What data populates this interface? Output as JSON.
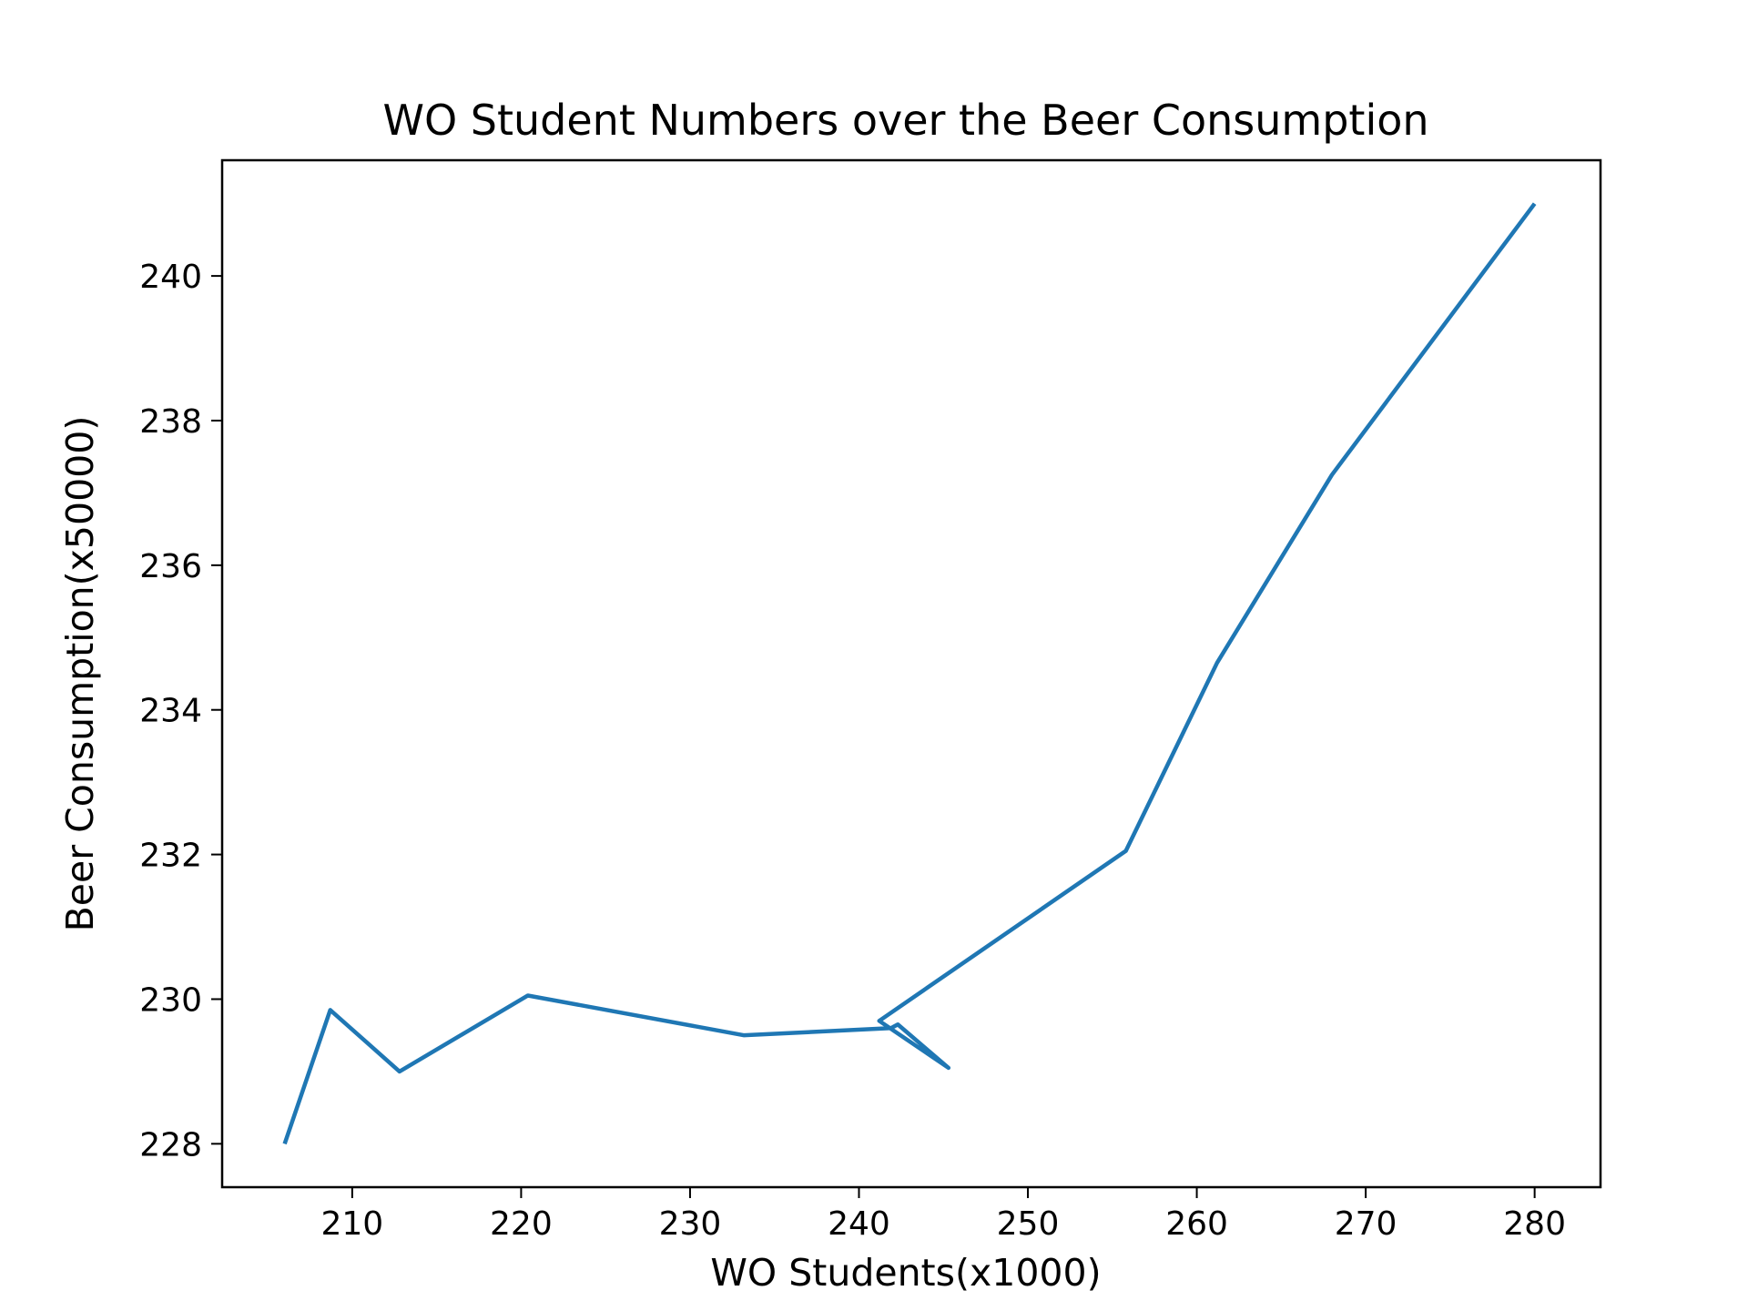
{
  "chart_data": {
    "type": "line",
    "title": "WO Student Numbers over the Beer Consumption",
    "xlabel": "WO Students(x1000)",
    "ylabel": "Beer Consumption(x50000)",
    "xlim": [
      202.3,
      283.9
    ],
    "ylim": [
      227.4,
      241.6
    ],
    "xticks": [
      210,
      220,
      230,
      240,
      250,
      260,
      270,
      280
    ],
    "yticks": [
      228,
      230,
      232,
      234,
      236,
      238,
      240
    ],
    "grid": false,
    "color": "#1f77b4",
    "series": [
      {
        "x": [
          206.0,
          208.7,
          212.8,
          220.4,
          233.2,
          241.9,
          242.3,
          245.3,
          241.2,
          255.8,
          261.2,
          268.0,
          280.0
        ],
        "y": [
          228.0,
          229.85,
          229.0,
          230.05,
          229.5,
          229.6,
          229.65,
          229.05,
          229.7,
          232.05,
          234.65,
          237.25,
          241.0
        ]
      }
    ]
  }
}
